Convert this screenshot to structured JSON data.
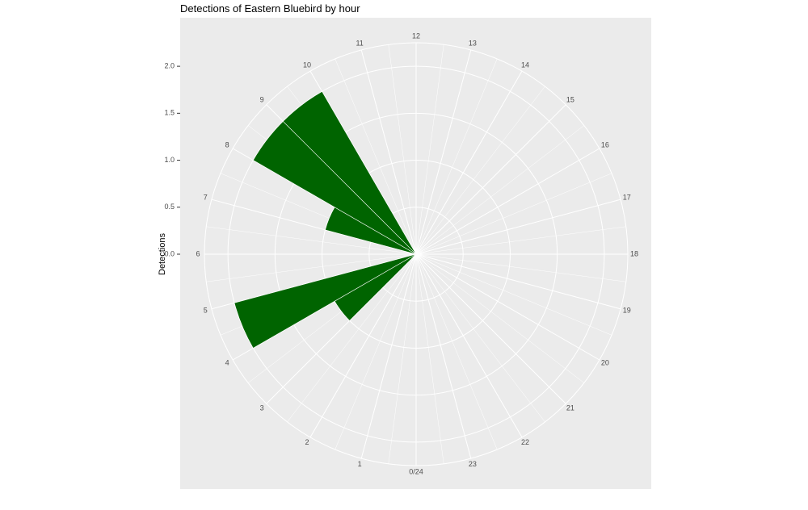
{
  "chart_data": {
    "type": "polar_bar",
    "title": "Detections of Eastern Bluebird by hour",
    "y_label": "Detections",
    "x": [
      3,
      4,
      7,
      8,
      9
    ],
    "values": [
      1,
      2,
      1,
      2,
      2
    ],
    "color": "#006400",
    "xlim": [
      0,
      24
    ],
    "xticks": [
      {
        "value": 0,
        "label": "0/24"
      },
      1,
      2,
      3,
      4,
      5,
      6,
      7,
      8,
      9,
      10,
      11,
      12,
      13,
      14,
      15,
      16,
      17,
      18,
      19,
      20,
      21,
      22,
      23
    ],
    "ylim": [
      0,
      2.25
    ],
    "yticks": [
      {
        "value": 0,
        "label": "0.0"
      },
      {
        "value": 0.5,
        "label": "0.5"
      },
      {
        "value": 1,
        "label": "1.0"
      },
      {
        "value": 1.5,
        "label": "1.5"
      },
      {
        "value": 2,
        "label": "2.0"
      }
    ],
    "grid": true
  }
}
